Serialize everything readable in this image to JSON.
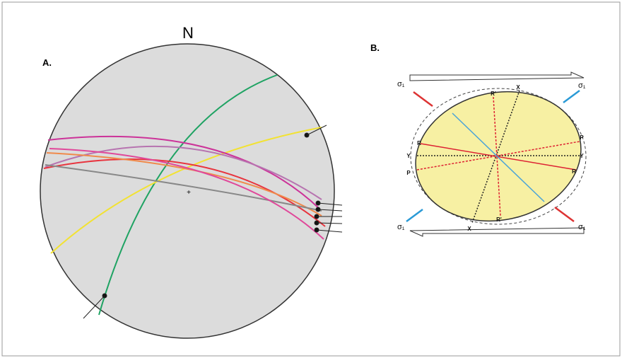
{
  "panel_a": {
    "label": "A.",
    "north": "N"
  },
  "panel_b": {
    "label": "B.",
    "sigma_labels": [
      "σ₁",
      "σ₁",
      "σ₁",
      "σ₁"
    ],
    "axis_labels": [
      "X",
      "X",
      "Y",
      "Y",
      "P",
      "P",
      "R",
      "R",
      "R'",
      "R'"
    ]
  }
}
